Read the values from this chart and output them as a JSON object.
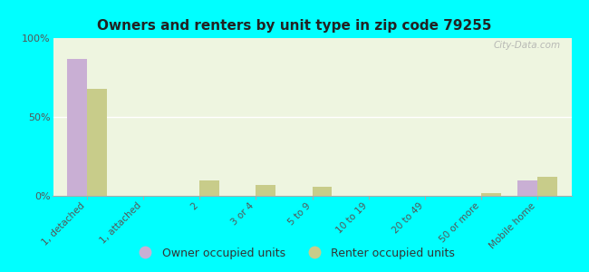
{
  "title": "Owners and renters by unit type in zip code 79255",
  "categories": [
    "1, detached",
    "1, attached",
    "2",
    "3 or 4",
    "5 to 9",
    "10 to 19",
    "20 to 49",
    "50 or more",
    "Mobile home"
  ],
  "owner_values": [
    87,
    0,
    0,
    0,
    0,
    0,
    0,
    0,
    10
  ],
  "renter_values": [
    68,
    0,
    10,
    7,
    6,
    0,
    0,
    2,
    12
  ],
  "owner_color": "#c9afd4",
  "renter_color": "#c8cc8a",
  "background_color": "#00ffff",
  "plot_bg_color": "#eef5e0",
  "ylim": [
    0,
    100
  ],
  "yticks": [
    0,
    50,
    100
  ],
  "ytick_labels": [
    "0%",
    "50%",
    "100%"
  ],
  "watermark": "City-Data.com",
  "bar_width": 0.35,
  "legend_owner": "Owner occupied units",
  "legend_renter": "Renter occupied units"
}
